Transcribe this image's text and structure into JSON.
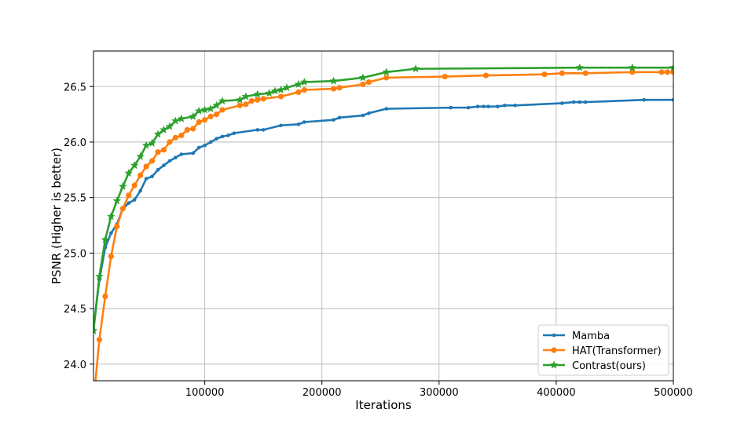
{
  "chart_data": {
    "type": "line",
    "title": "",
    "xlabel": "Iterations",
    "ylabel": "PSNR (Higher is better)",
    "xlim": [
      5000,
      500000
    ],
    "ylim": [
      23.85,
      26.82
    ],
    "x_ticks": [
      100000,
      200000,
      300000,
      400000,
      500000
    ],
    "x_tick_labels": [
      "100000",
      "200000",
      "300000",
      "400000",
      "500000"
    ],
    "y_ticks": [
      24.0,
      24.5,
      25.0,
      25.5,
      26.0,
      26.5
    ],
    "y_tick_labels": [
      "24.0",
      "24.5",
      "25.0",
      "25.5",
      "26.0",
      "26.5"
    ],
    "grid": true,
    "legend_position": "lower-right",
    "series": [
      {
        "name": "Mamba",
        "color": "#1f77b4",
        "marker": "dot",
        "x": [
          5000,
          10000,
          15000,
          20000,
          25000,
          30000,
          35000,
          40000,
          45000,
          50000,
          55000,
          60000,
          65000,
          70000,
          75000,
          80000,
          90000,
          95000,
          100000,
          105000,
          110000,
          115000,
          120000,
          125000,
          145000,
          150000,
          165000,
          180000,
          185000,
          210000,
          215000,
          235000,
          240000,
          255000,
          310000,
          325000,
          333000,
          338000,
          342000,
          350000,
          356000,
          365000,
          405000,
          415000,
          420000,
          425000,
          475000,
          500000
        ],
        "y": [
          24.32,
          24.76,
          25.05,
          25.18,
          25.26,
          25.4,
          25.45,
          25.48,
          25.56,
          25.67,
          25.69,
          25.75,
          25.79,
          25.83,
          25.86,
          25.89,
          25.9,
          25.95,
          25.97,
          26.0,
          26.03,
          26.05,
          26.06,
          26.08,
          26.11,
          26.11,
          26.15,
          26.16,
          26.18,
          26.2,
          26.22,
          26.24,
          26.26,
          26.3,
          26.31,
          26.31,
          26.32,
          26.32,
          26.32,
          26.32,
          26.33,
          26.33,
          26.35,
          26.36,
          26.36,
          26.36,
          26.38,
          26.38
        ]
      },
      {
        "name": "HAT(Transformer)",
        "color": "#ff7f0e",
        "marker": "circle",
        "x": [
          5000,
          10000,
          15000,
          20000,
          25000,
          30000,
          35000,
          40000,
          45000,
          50000,
          55000,
          60000,
          65000,
          70000,
          75000,
          80000,
          85000,
          90000,
          95000,
          100000,
          105000,
          110000,
          115000,
          130000,
          135000,
          140000,
          145000,
          150000,
          165000,
          180000,
          185000,
          210000,
          215000,
          235000,
          240000,
          255000,
          305000,
          340000,
          390000,
          405000,
          425000,
          465000,
          490000,
          495000,
          500000
        ],
        "y": [
          23.66,
          24.22,
          24.61,
          24.97,
          25.24,
          25.4,
          25.52,
          25.61,
          25.7,
          25.78,
          25.83,
          25.91,
          25.93,
          26.0,
          26.04,
          26.06,
          26.11,
          26.12,
          26.18,
          26.2,
          26.23,
          26.25,
          26.29,
          26.33,
          26.34,
          26.37,
          26.38,
          26.39,
          26.41,
          26.45,
          26.47,
          26.48,
          26.49,
          26.52,
          26.54,
          26.58,
          26.59,
          26.6,
          26.61,
          26.62,
          26.62,
          26.63,
          26.63,
          26.63,
          26.63
        ]
      },
      {
        "name": "Contrast(ours)",
        "color": "#2ca02c",
        "marker": "star",
        "x": [
          5000,
          10000,
          15000,
          20000,
          25000,
          30000,
          35000,
          40000,
          45000,
          50000,
          55000,
          60000,
          65000,
          70000,
          75000,
          80000,
          90000,
          95000,
          100000,
          105000,
          110000,
          115000,
          130000,
          135000,
          145000,
          155000,
          160000,
          165000,
          170000,
          180000,
          185000,
          210000,
          235000,
          255000,
          280000,
          420000,
          465000,
          500000
        ],
        "y": [
          24.3,
          24.79,
          25.12,
          25.33,
          25.47,
          25.6,
          25.72,
          25.79,
          25.87,
          25.97,
          25.99,
          26.07,
          26.11,
          26.14,
          26.19,
          26.21,
          26.23,
          26.28,
          26.29,
          26.3,
          26.33,
          26.37,
          26.38,
          26.41,
          26.43,
          26.44,
          26.46,
          26.47,
          26.49,
          26.52,
          26.54,
          26.55,
          26.58,
          26.63,
          26.66,
          26.67,
          26.67,
          26.67
        ]
      }
    ]
  }
}
